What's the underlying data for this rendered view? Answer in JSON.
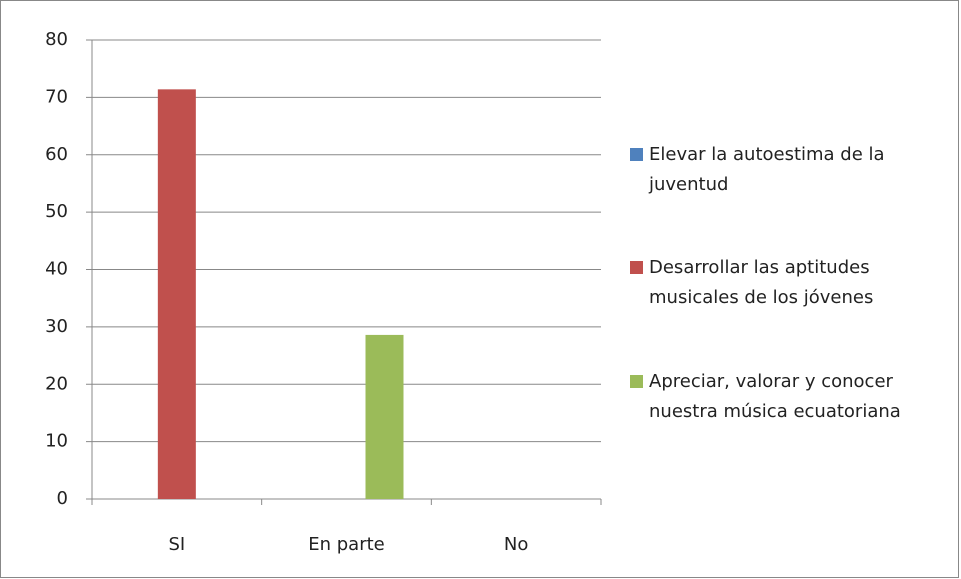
{
  "chart_data": {
    "type": "bar",
    "categories": [
      "SI",
      "En parte",
      "No"
    ],
    "series": [
      {
        "name": "Elevar la autoestima de la juventud",
        "color": "#4f81bd",
        "values": [
          0,
          0,
          0
        ]
      },
      {
        "name": "Desarrollar las aptitudes musicales de los jóvenes",
        "color": "#c0504d",
        "values": [
          71.4,
          0,
          0
        ]
      },
      {
        "name": "Apreciar, valorar y conocer nuestra música ecuatoriana",
        "color": "#9bbb59",
        "values": [
          0,
          28.6,
          0
        ]
      }
    ],
    "ylim": [
      0,
      80
    ],
    "yticks": [
      0,
      10,
      20,
      30,
      40,
      50,
      60,
      70,
      80
    ],
    "grid": true,
    "legend": "right"
  }
}
